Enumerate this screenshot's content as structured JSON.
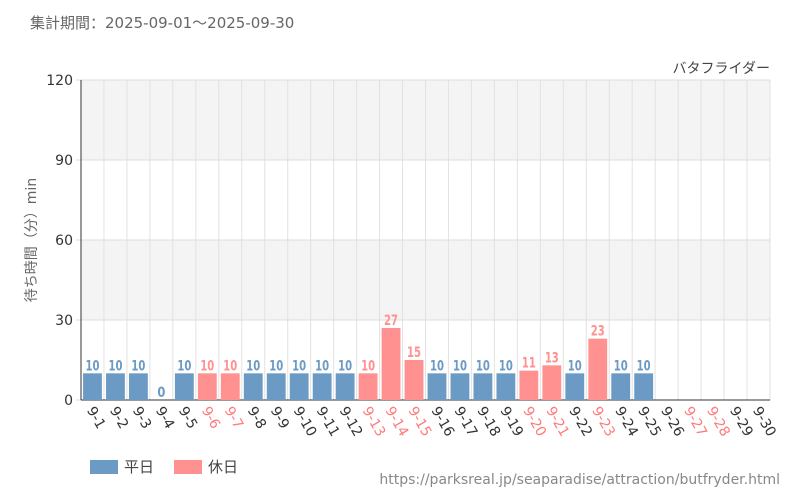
{
  "header": {
    "period": "集計期間：2025-09-01～2025-09-30"
  },
  "legend": [
    {
      "label": "平日",
      "color": "#6b9ac4"
    },
    {
      "label": "休日",
      "color": "#ff9191"
    }
  ],
  "footer": {
    "source_url": "https://parksreal.jp/seaparadise/attraction/butfryder.html"
  },
  "chart_data": {
    "type": "bar",
    "title": "バタフライダー",
    "ylabel": "待ち時間（分）min",
    "xlabel": "",
    "ylim": [
      0,
      120
    ],
    "yticks": [
      0,
      30,
      60,
      90,
      120
    ],
    "grid": true,
    "categories": [
      "9-1",
      "9-2",
      "9-3",
      "9-4",
      "9-5",
      "9-6",
      "9-7",
      "9-8",
      "9-9",
      "9-10",
      "9-11",
      "9-12",
      "9-13",
      "9-14",
      "9-15",
      "9-16",
      "9-17",
      "9-18",
      "9-19",
      "9-20",
      "9-21",
      "9-22",
      "9-23",
      "9-24",
      "9-25",
      "9-26",
      "9-27",
      "9-28",
      "9-29",
      "9-30"
    ],
    "values": [
      10,
      10,
      10,
      0,
      10,
      10,
      10,
      10,
      10,
      10,
      10,
      10,
      10,
      27,
      15,
      10,
      10,
      10,
      10,
      11,
      13,
      10,
      23,
      10,
      10,
      null,
      null,
      null,
      null,
      null
    ],
    "day_type": [
      "weekday",
      "weekday",
      "weekday",
      "weekday",
      "weekday",
      "holiday",
      "holiday",
      "weekday",
      "weekday",
      "weekday",
      "weekday",
      "weekday",
      "holiday",
      "holiday",
      "holiday",
      "weekday",
      "weekday",
      "weekday",
      "weekday",
      "holiday",
      "holiday",
      "weekday",
      "holiday",
      "weekday",
      "weekday",
      "weekday",
      "holiday",
      "holiday",
      "weekday",
      "weekday"
    ],
    "colors": {
      "weekday": "#6b9ac4",
      "holiday": "#ff9191"
    }
  }
}
